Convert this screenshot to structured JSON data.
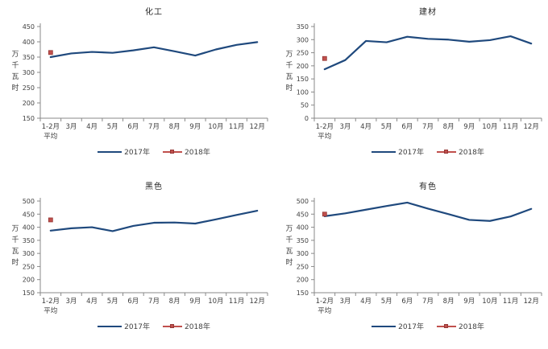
{
  "page": {
    "background": "#ffffff"
  },
  "colors": {
    "line_2017": "#1F497D",
    "marker_2018": "#C0504D",
    "marker_2018_border": "#953735",
    "axis": "#898989",
    "tick_text": "#3f3f3f",
    "title_text": "#262626"
  },
  "chart_data": [
    {
      "type": "line",
      "title": "化工",
      "ylabel": "万千瓦时",
      "xlabel": "",
      "categories": [
        "1-2月\n平均",
        "3月",
        "4月",
        "5月",
        "6月",
        "7月",
        "8月",
        "9月",
        "10月",
        "11月",
        "12月"
      ],
      "ylim": [
        150,
        450
      ],
      "ytick_step": 50,
      "grid": false,
      "legend_position": "bottom",
      "series": [
        {
          "name": "2017年",
          "style": "line",
          "values": [
            350,
            362,
            367,
            364,
            372,
            382,
            369,
            355,
            375,
            390,
            399
          ]
        },
        {
          "name": "2018年",
          "style": "square-marker",
          "values": [
            365
          ]
        }
      ]
    },
    {
      "type": "line",
      "title": "建材",
      "ylabel": "万千瓦时",
      "xlabel": "",
      "categories": [
        "1-2月\n平均",
        "3月",
        "4月",
        "5月",
        "6月",
        "7月",
        "8月",
        "9月",
        "10月",
        "11月",
        "12月"
      ],
      "ylim": [
        0,
        350
      ],
      "ytick_step": 50,
      "grid": false,
      "legend_position": "bottom",
      "series": [
        {
          "name": "2017年",
          "style": "line",
          "values": [
            187,
            222,
            295,
            290,
            311,
            303,
            300,
            292,
            298,
            313,
            285
          ]
        },
        {
          "name": "2018年",
          "style": "square-marker",
          "values": [
            228
          ]
        }
      ]
    },
    {
      "type": "line",
      "title": "黑色",
      "ylabel": "万千瓦时",
      "xlabel": "",
      "categories": [
        "1-2月\n平均",
        "3月",
        "4月",
        "5月",
        "6月",
        "7月",
        "8月",
        "9月",
        "10月",
        "11月",
        "12月"
      ],
      "ylim": [
        150,
        500
      ],
      "ytick_step": 50,
      "grid": false,
      "legend_position": "bottom",
      "series": [
        {
          "name": "2017年",
          "style": "line",
          "values": [
            387,
            396,
            400,
            385,
            405,
            417,
            418,
            414,
            430,
            447,
            463
          ]
        },
        {
          "name": "2018年",
          "style": "square-marker",
          "values": [
            428
          ]
        }
      ]
    },
    {
      "type": "line",
      "title": "有色",
      "ylabel": "万千瓦时",
      "xlabel": "",
      "categories": [
        "1-2月\n平均",
        "3月",
        "4月",
        "5月",
        "6月",
        "7月",
        "8月",
        "9月",
        "10月",
        "11月",
        "12月"
      ],
      "ylim": [
        150,
        500
      ],
      "ytick_step": 50,
      "grid": false,
      "legend_position": "bottom",
      "series": [
        {
          "name": "2017年",
          "style": "line",
          "values": [
            442,
            453,
            467,
            481,
            494,
            471,
            450,
            428,
            424,
            441,
            470
          ]
        },
        {
          "name": "2018年",
          "style": "square-marker",
          "values": [
            450
          ]
        }
      ]
    }
  ]
}
